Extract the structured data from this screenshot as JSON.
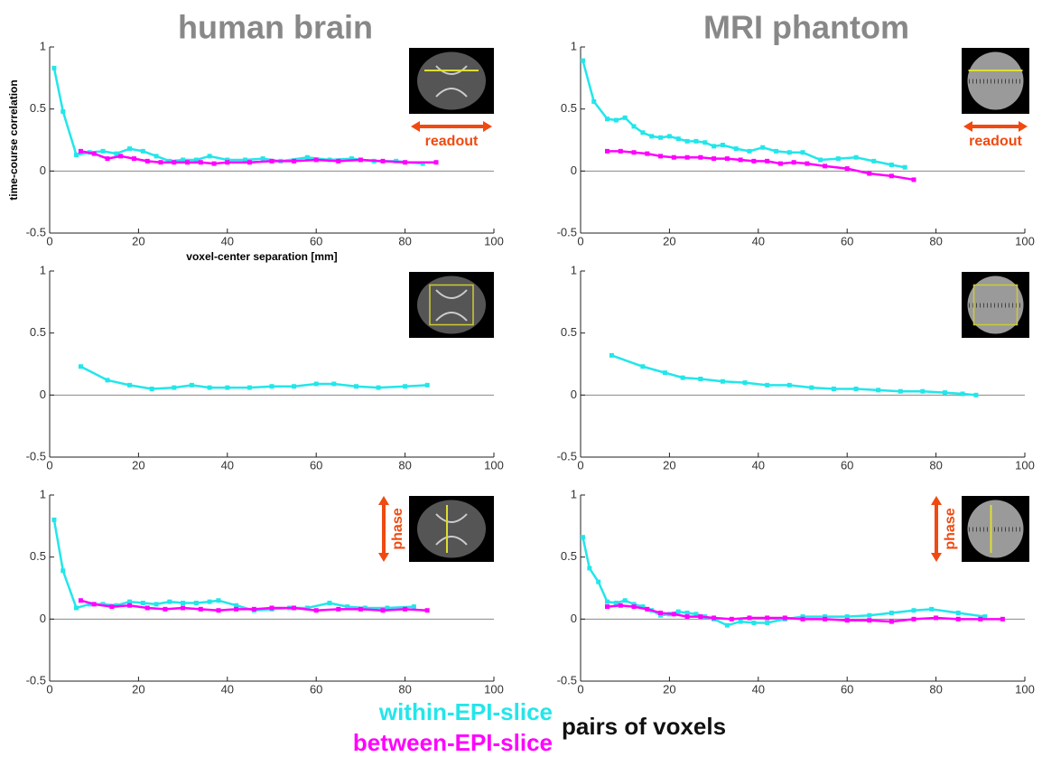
{
  "chart_data": [
    {
      "type": "line",
      "title": "human brain",
      "ylabel": "time-course correlation",
      "xlabel": "voxel-center separation [mm]",
      "annotation": "readout",
      "xlim": [
        0,
        100
      ],
      "xticks": [
        0,
        20,
        40,
        60,
        80,
        100
      ],
      "ylim": [
        -0.5,
        1
      ],
      "yticks": [
        -0.5,
        0,
        0.5,
        1
      ],
      "series": [
        {
          "name": "within-EPI-slice",
          "color": "#22e6ea",
          "x": [
            1,
            3,
            6,
            9,
            12,
            15,
            18,
            21,
            24,
            27,
            30,
            33,
            36,
            40,
            44,
            48,
            52,
            58,
            63,
            68,
            73,
            78,
            84
          ],
          "values": [
            0.83,
            0.48,
            0.13,
            0.15,
            0.16,
            0.14,
            0.18,
            0.16,
            0.12,
            0.08,
            0.09,
            0.09,
            0.12,
            0.09,
            0.09,
            0.1,
            0.08,
            0.11,
            0.09,
            0.1,
            0.08,
            0.08,
            0.06
          ]
        },
        {
          "name": "between-EPI-slice",
          "color": "#ff00ff",
          "x": [
            7,
            10,
            13,
            16,
            19,
            22,
            25,
            28,
            31,
            34,
            37,
            40,
            45,
            50,
            55,
            60,
            65,
            70,
            75,
            80,
            87
          ],
          "values": [
            0.16,
            0.14,
            0.1,
            0.12,
            0.1,
            0.08,
            0.07,
            0.07,
            0.07,
            0.07,
            0.06,
            0.07,
            0.07,
            0.08,
            0.08,
            0.09,
            0.08,
            0.09,
            0.08,
            0.07,
            0.07
          ]
        }
      ]
    },
    {
      "type": "line",
      "title": "MRI phantom",
      "annotation": "readout",
      "xlim": [
        0,
        100
      ],
      "xticks": [
        0,
        20,
        40,
        60,
        80,
        100
      ],
      "ylim": [
        -0.5,
        1
      ],
      "yticks": [
        -0.5,
        0,
        0.5,
        1
      ],
      "series": [
        {
          "color": "#22e6ea",
          "x": [
            0.5,
            3,
            6,
            8,
            10,
            12,
            14,
            16,
            18,
            20,
            22,
            24,
            26,
            28,
            30,
            32,
            35,
            38,
            41,
            44,
            47,
            50,
            54,
            58,
            62,
            66,
            70,
            73
          ],
          "values": [
            0.89,
            0.56,
            0.42,
            0.41,
            0.43,
            0.36,
            0.31,
            0.28,
            0.27,
            0.28,
            0.26,
            0.24,
            0.24,
            0.23,
            0.2,
            0.21,
            0.18,
            0.16,
            0.19,
            0.16,
            0.15,
            0.15,
            0.09,
            0.1,
            0.11,
            0.08,
            0.05,
            0.03
          ]
        },
        {
          "color": "#ff00ff",
          "x": [
            6,
            9,
            12,
            15,
            18,
            21,
            24,
            27,
            30,
            33,
            36,
            39,
            42,
            45,
            48,
            51,
            55,
            60,
            65,
            70,
            75
          ],
          "values": [
            0.16,
            0.16,
            0.15,
            0.14,
            0.12,
            0.11,
            0.11,
            0.11,
            0.1,
            0.1,
            0.09,
            0.08,
            0.08,
            0.06,
            0.07,
            0.06,
            0.04,
            0.02,
            -0.02,
            -0.04,
            -0.07
          ]
        }
      ]
    },
    {
      "type": "line",
      "xlim": [
        0,
        100
      ],
      "xticks": [
        0,
        20,
        40,
        60,
        80,
        100
      ],
      "ylim": [
        -0.5,
        1
      ],
      "yticks": [
        -0.5,
        0,
        0.5,
        1
      ],
      "series": [
        {
          "color": "#22e6ea",
          "x": [
            7,
            13,
            18,
            23,
            28,
            32,
            36,
            40,
            45,
            50,
            55,
            60,
            64,
            69,
            74,
            80,
            85
          ],
          "values": [
            0.23,
            0.12,
            0.08,
            0.05,
            0.06,
            0.08,
            0.06,
            0.06,
            0.06,
            0.07,
            0.07,
            0.09,
            0.09,
            0.07,
            0.06,
            0.07,
            0.08
          ]
        }
      ]
    },
    {
      "type": "line",
      "xlim": [
        0,
        100
      ],
      "xticks": [
        0,
        20,
        40,
        60,
        80,
        100
      ],
      "ylim": [
        -0.5,
        1
      ],
      "yticks": [
        -0.5,
        0,
        0.5,
        1
      ],
      "series": [
        {
          "color": "#22e6ea",
          "x": [
            7,
            14,
            19,
            23,
            27,
            32,
            37,
            42,
            47,
            52,
            57,
            62,
            67,
            72,
            77,
            82,
            86,
            89
          ],
          "values": [
            0.32,
            0.23,
            0.18,
            0.14,
            0.13,
            0.11,
            0.1,
            0.08,
            0.08,
            0.06,
            0.05,
            0.05,
            0.04,
            0.03,
            0.03,
            0.02,
            0.01,
            0
          ]
        }
      ]
    },
    {
      "type": "line",
      "annotation": "phase",
      "xlim": [
        0,
        100
      ],
      "xticks": [
        0,
        20,
        40,
        60,
        80,
        100
      ],
      "ylim": [
        -0.5,
        1
      ],
      "yticks": [
        -0.5,
        0,
        0.5,
        1
      ],
      "series": [
        {
          "color": "#22e6ea",
          "x": [
            1,
            3,
            6,
            9,
            12,
            15,
            18,
            21,
            24,
            27,
            30,
            33,
            36,
            38,
            42,
            46,
            50,
            54,
            58,
            63,
            67,
            71,
            76,
            82
          ],
          "values": [
            0.8,
            0.39,
            0.09,
            0.12,
            0.12,
            0.11,
            0.14,
            0.13,
            0.12,
            0.14,
            0.13,
            0.13,
            0.14,
            0.15,
            0.11,
            0.07,
            0.08,
            0.09,
            0.09,
            0.13,
            0.1,
            0.09,
            0.09,
            0.1
          ]
        },
        {
          "color": "#ff00ff",
          "x": [
            7,
            10,
            14,
            18,
            22,
            26,
            30,
            34,
            38,
            42,
            46,
            50,
            55,
            60,
            65,
            70,
            75,
            80,
            85
          ],
          "values": [
            0.15,
            0.12,
            0.1,
            0.11,
            0.09,
            0.08,
            0.09,
            0.08,
            0.07,
            0.08,
            0.08,
            0.09,
            0.09,
            0.07,
            0.08,
            0.08,
            0.07,
            0.08,
            0.07
          ]
        }
      ]
    },
    {
      "type": "line",
      "annotation": "phase",
      "xlim": [
        0,
        100
      ],
      "xticks": [
        0,
        20,
        40,
        60,
        80,
        100
      ],
      "ylim": [
        -0.5,
        1
      ],
      "yticks": [
        -0.5,
        0,
        0.5,
        1
      ],
      "series": [
        {
          "color": "#22e6ea",
          "x": [
            0.5,
            2,
            4,
            6,
            8,
            10,
            12,
            14,
            16,
            18,
            20,
            22,
            24,
            26,
            28,
            30,
            33,
            36,
            39,
            42,
            46,
            50,
            55,
            60,
            65,
            70,
            75,
            79,
            85,
            91
          ],
          "values": [
            0.66,
            0.41,
            0.3,
            0.14,
            0.13,
            0.15,
            0.12,
            0.1,
            0.07,
            0.03,
            0.04,
            0.06,
            0.05,
            0.04,
            0.02,
            0,
            -0.05,
            -0.02,
            -0.03,
            -0.03,
            0,
            0.02,
            0.02,
            0.02,
            0.03,
            0.05,
            0.07,
            0.08,
            0.05,
            0.02
          ]
        },
        {
          "color": "#ff00ff",
          "x": [
            6,
            9,
            12,
            15,
            18,
            21,
            24,
            27,
            30,
            34,
            38,
            42,
            46,
            50,
            55,
            60,
            65,
            70,
            75,
            80,
            85,
            90,
            95
          ],
          "values": [
            0.1,
            0.11,
            0.1,
            0.08,
            0.05,
            0.04,
            0.02,
            0.02,
            0.01,
            0,
            0.01,
            0.01,
            0.01,
            0,
            0,
            -0.01,
            -0.01,
            -0.02,
            0,
            0.01,
            0,
            0,
            0
          ]
        }
      ]
    }
  ],
  "legend_title": "pairs of voxels"
}
